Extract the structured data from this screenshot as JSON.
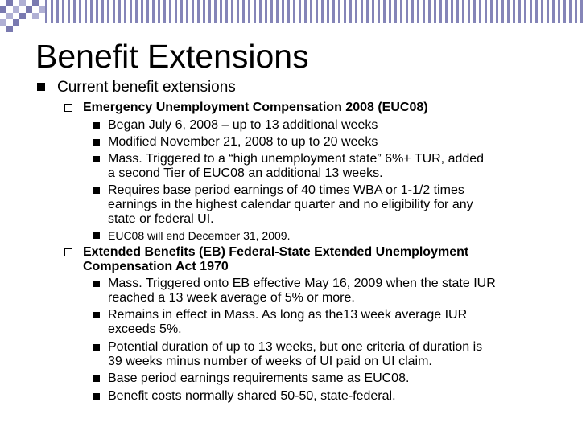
{
  "colors": {
    "band": "#8585b8",
    "grid_dark": "#7a7ab0",
    "grid_light": "#b0b0d4",
    "text": "#000000"
  },
  "slide": {
    "title": "Benefit Extensions",
    "top_bullet": "Current benefit extensions",
    "euc": {
      "heading": "Emergency Unemployment Compensation 2008 (EUC08)",
      "items": [
        {
          "lines": [
            "Began July 6, 2008 – up to 13 additional weeks"
          ]
        },
        {
          "lines": [
            "Modified November 21, 2008 to up to 20 weeks"
          ]
        },
        {
          "lines": [
            "Mass. Triggered to a “high unemployment state”  6%+ TUR, added",
            "a second Tier of EUC08 an additional 13 weeks."
          ]
        },
        {
          "lines": [
            "Requires base period earnings of 40 times WBA or 1-1/2 times",
            "earnings in the highest calendar quarter and no eligibility for any",
            "state or federal UI."
          ]
        },
        {
          "lines": [
            "EUC08 will end December 31, 2009."
          ]
        }
      ]
    },
    "eb": {
      "heading_lines": [
        "Extended Benefits (EB)    Federal-State Extended Unemployment",
        "Compensation Act 1970"
      ],
      "items": [
        {
          "lines": [
            "Mass. Triggered onto EB effective May 16, 2009 when the state IUR",
            "reached a 13 week average of 5% or more."
          ]
        },
        {
          "lines": [
            "Remains in effect in Mass. As long as the13 week average IUR",
            "exceeds 5%."
          ]
        },
        {
          "lines": [
            "Potential duration of up to 13 weeks, but one criteria of duration is",
            "39 weeks minus number of weeks of UI paid on UI claim."
          ]
        },
        {
          "lines": [
            "Base period earnings requirements same as EUC08."
          ]
        },
        {
          "lines": [
            "Benefit costs normally shared 50-50, state-federal."
          ]
        }
      ]
    }
  }
}
